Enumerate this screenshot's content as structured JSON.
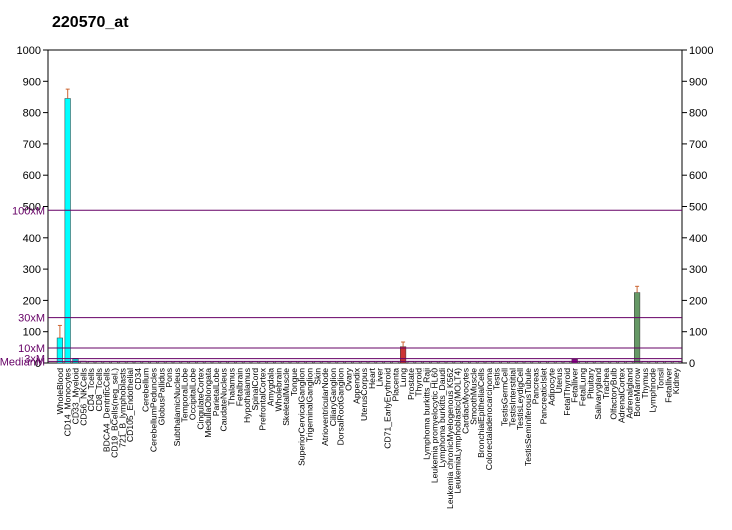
{
  "chart_data": {
    "type": "bar",
    "title": "220570_at",
    "xlabel": "",
    "ylabel": "",
    "ylim": [
      0,
      1000
    ],
    "yticks": [
      0,
      100,
      200,
      300,
      400,
      500,
      600,
      700,
      800,
      900,
      1000
    ],
    "grid": false,
    "legend": "none",
    "categories": [
      "WholeBlood",
      "CD14_Monocytes",
      "CD33_Myeloid",
      "CD56_NKCells",
      "CD4_Tcells",
      "CD8_Tcells",
      "BDCA4_DentriticCells",
      "CD19_BCells(neg_sel.)",
      "721_B_lymphoblasts",
      "CD105_Endothelial",
      "CD34",
      "Cerebellum",
      "CerebellumPeduncles",
      "GlobusPallidus",
      "Pons",
      "SubthalamicNucleus",
      "TemporalLobe",
      "OccipitalLobe",
      "CingulateCortex",
      "MedullaOblongata",
      "ParietalLobe",
      "CaudateNucleus",
      "Thalamus",
      "Fetalbrain",
      "Hypothalamus",
      "SpinalCord",
      "PrefrontalCortex",
      "Amygdala",
      "Wholebrain",
      "SkeletalMuscle",
      "Tongue",
      "SuperiorCervicalGanglion",
      "TrigeminalGanglion",
      "Skin",
      "AtrioventricularNode",
      "CiliaryGanglion",
      "DorsalRootGanglion",
      "Ovary",
      "Appendix",
      "UterusCorpus",
      "Heart",
      "Liver",
      "CD71_EarlyErythroid",
      "Placenta",
      "Lung",
      "Prostate",
      "Thyroid",
      "Lymphoma burkitts_Raji",
      "Leukemia promyelocytic HL60",
      "Lymphoma burkitts_Daudi",
      "Leukemia chronicMyelogenous K562",
      "LeukemiaLymphoblastic(MOLT4)",
      "CardiacMyocytes",
      "SmoothMuscle",
      "BronchialEpithelialCells",
      "Colorectaladenocarcinoma",
      "Testis",
      "TestisGermCell",
      "TestisInterstitial",
      "TestisLeydigCell",
      "TestisSeminiferousTubule",
      "Pancreas",
      "PancreaticIslet",
      "Adipocyte",
      "Uterus",
      "FetalThyroid",
      "Fetalliver",
      "FetalLung",
      "Pituitary",
      "Salivarygland",
      "Trachea",
      "OlfactoryBulb",
      "AdrenalCortex",
      "Adrenalgland",
      "BoneMarrow",
      "Thymus",
      "Lymphnode",
      "Tonsil",
      "Fetalliver",
      "Kidney"
    ],
    "series": [
      {
        "values": [
          80,
          845,
          15,
          6,
          5,
          5,
          5,
          5,
          5,
          5,
          5,
          5,
          5,
          5,
          5,
          5,
          5,
          5,
          5,
          5,
          5,
          5,
          5,
          5,
          5,
          5,
          5,
          5,
          5,
          5,
          5,
          5,
          5,
          5,
          5,
          5,
          5,
          5,
          5,
          5,
          5,
          5,
          5,
          5,
          52,
          5,
          5,
          5,
          5,
          5,
          5,
          5,
          5,
          5,
          5,
          5,
          5,
          5,
          5,
          5,
          5,
          5,
          5,
          5,
          5,
          5,
          12,
          5,
          5,
          5,
          5,
          5,
          5,
          5,
          225,
          5,
          5,
          5,
          5,
          5
        ],
        "errors": [
          40,
          30,
          0,
          0,
          0,
          0,
          0,
          0,
          0,
          0,
          0,
          0,
          0,
          0,
          0,
          0,
          0,
          0,
          0,
          0,
          0,
          0,
          0,
          0,
          0,
          0,
          0,
          0,
          0,
          0,
          0,
          0,
          0,
          0,
          0,
          0,
          0,
          0,
          0,
          0,
          0,
          0,
          0,
          0,
          15,
          0,
          0,
          0,
          0,
          0,
          0,
          0,
          0,
          0,
          0,
          0,
          0,
          0,
          0,
          0,
          0,
          0,
          0,
          0,
          0,
          0,
          0,
          0,
          0,
          0,
          0,
          0,
          0,
          0,
          20,
          0,
          0,
          0,
          0,
          0
        ],
        "colors": {
          "0": "#00ffff",
          "1": "#00ffff",
          "2": "#00cccc",
          "44": "#cc3333",
          "66": "#990099",
          "74": "#669966"
        }
      }
    ],
    "reference_lines": [
      {
        "label": "100xM",
        "value": 488
      },
      {
        "label": "30xM",
        "value": 145
      },
      {
        "label": "10xM",
        "value": 48
      },
      {
        "label": "3xM",
        "value": 14
      },
      {
        "label": "MedianM",
        "value": 5
      }
    ],
    "colors": {
      "default_bar": "#cccccc",
      "reference_line": "#660066",
      "error_bar": "#cc6633"
    }
  }
}
